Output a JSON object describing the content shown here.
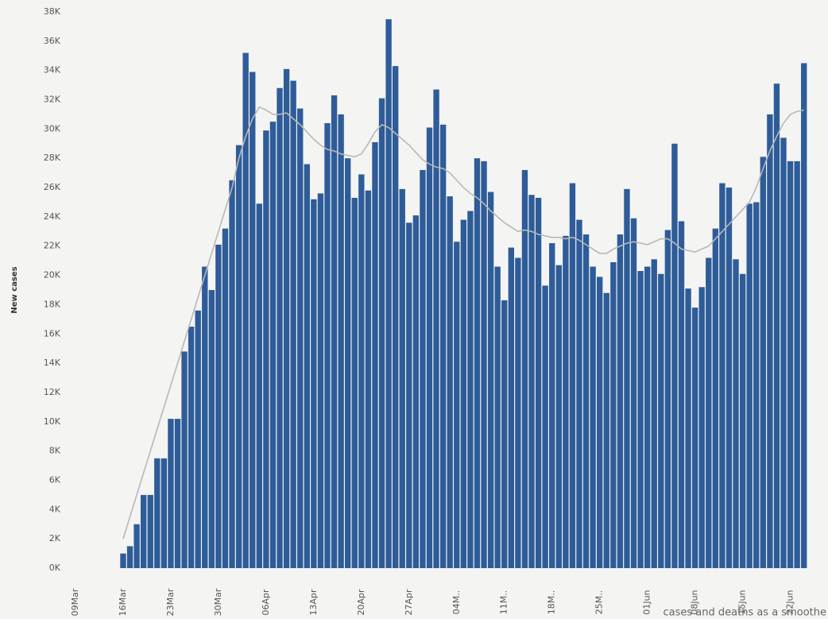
{
  "chart_data": {
    "type": "bar",
    "y_label": "New cases",
    "footnote": "cases and deaths as a smoothe",
    "ylim": [
      0,
      38
    ],
    "yticks": [
      {
        "value": 0,
        "label": "0K"
      },
      {
        "value": 2,
        "label": "2K"
      },
      {
        "value": 4,
        "label": "4K"
      },
      {
        "value": 6,
        "label": "6K"
      },
      {
        "value": 8,
        "label": "8K"
      },
      {
        "value": 10,
        "label": "10K"
      },
      {
        "value": 12,
        "label": "12K"
      },
      {
        "value": 14,
        "label": "14K"
      },
      {
        "value": 16,
        "label": "16K"
      },
      {
        "value": 18,
        "label": "18K"
      },
      {
        "value": 20,
        "label": "20K"
      },
      {
        "value": 22,
        "label": "22K"
      },
      {
        "value": 24,
        "label": "24K"
      },
      {
        "value": 26,
        "label": "26K"
      },
      {
        "value": 28,
        "label": "28K"
      },
      {
        "value": 30,
        "label": "30K"
      },
      {
        "value": 32,
        "label": "32K"
      },
      {
        "value": 34,
        "label": "34K"
      },
      {
        "value": 36,
        "label": "36K"
      },
      {
        "value": 38,
        "label": "38K"
      }
    ],
    "grid": false,
    "categories": [
      "09Mar",
      null,
      null,
      null,
      null,
      null,
      null,
      "16Mar",
      null,
      null,
      null,
      null,
      null,
      null,
      "23Mar",
      null,
      null,
      null,
      null,
      null,
      null,
      "30Mar",
      null,
      null,
      null,
      null,
      null,
      null,
      "06Apr",
      null,
      null,
      null,
      null,
      null,
      null,
      "13Apr",
      null,
      null,
      null,
      null,
      null,
      null,
      "20Apr",
      null,
      null,
      null,
      null,
      null,
      null,
      "27Apr",
      null,
      null,
      null,
      null,
      null,
      null,
      "04M..",
      null,
      null,
      null,
      null,
      null,
      null,
      "11M..",
      null,
      null,
      null,
      null,
      null,
      null,
      "18M..",
      null,
      null,
      null,
      null,
      null,
      null,
      "25M..",
      null,
      null,
      null,
      null,
      null,
      null,
      "01Jun",
      null,
      null,
      null,
      null,
      null,
      null,
      "08Jun",
      null,
      null,
      null,
      null,
      null,
      null,
      "15Jun",
      null,
      null,
      null,
      null,
      null,
      null,
      "22Jun",
      null,
      null
    ],
    "series": [
      {
        "type": "bar",
        "color": "#2e5c99",
        "values": [
          null,
          null,
          null,
          null,
          null,
          null,
          null,
          1.0,
          1.5,
          3.0,
          5.0,
          5.0,
          7.5,
          7.5,
          10.2,
          10.2,
          14.8,
          16.5,
          17.6,
          20.6,
          19.0,
          22.1,
          23.2,
          26.5,
          28.9,
          35.2,
          33.9,
          24.9,
          29.9,
          30.5,
          32.8,
          34.1,
          33.3,
          31.4,
          27.6,
          25.2,
          25.6,
          30.4,
          32.3,
          31.0,
          28.0,
          25.3,
          26.9,
          25.8,
          29.1,
          32.1,
          37.5,
          34.3,
          25.9,
          23.6,
          24.1,
          27.2,
          30.1,
          32.7,
          30.3,
          25.4,
          22.3,
          23.8,
          24.4,
          28.0,
          27.8,
          25.7,
          20.6,
          18.3,
          21.9,
          21.2,
          27.2,
          25.5,
          25.3,
          19.3,
          22.2,
          20.7,
          22.7,
          26.3,
          23.8,
          22.8,
          20.6,
          19.9,
          18.8,
          20.9,
          22.8,
          25.9,
          23.9,
          20.3,
          20.6,
          21.1,
          20.1,
          23.1,
          29.0,
          23.7,
          19.1,
          17.8,
          19.2,
          21.2,
          23.2,
          26.3,
          26.0,
          21.1,
          20.1,
          24.9,
          25.0,
          28.1,
          31.0,
          33.1,
          29.4,
          27.8,
          27.8,
          34.5
        ]
      },
      {
        "type": "line",
        "color": "#b8b8b8",
        "values": [
          null,
          null,
          null,
          null,
          null,
          null,
          null,
          2,
          3.5,
          5,
          6.5,
          8,
          9.5,
          11,
          12.5,
          14,
          15.5,
          17,
          18.5,
          20,
          21.5,
          23,
          24.5,
          26,
          28,
          29.5,
          30.7,
          31.5,
          31.3,
          31.0,
          31.0,
          31.1,
          30.7,
          30.3,
          29.8,
          29.3,
          28.9,
          28.6,
          28.5,
          28.3,
          28.2,
          28.1,
          28.3,
          29.0,
          29.8,
          30.3,
          30.1,
          29.7,
          29.3,
          28.9,
          28.4,
          27.9,
          27.6,
          27.4,
          27.3,
          27.0,
          26.5,
          26.0,
          25.6,
          25.3,
          24.9,
          24.4,
          24.0,
          23.6,
          23.3,
          23.0,
          23.1,
          23.0,
          22.8,
          22.7,
          22.6,
          22.6,
          22.5,
          22.6,
          22.4,
          22.1,
          21.8,
          21.5,
          21.5,
          21.8,
          22.0,
          22.2,
          22.3,
          22.2,
          22.1,
          22.3,
          22.5,
          22.5,
          22.2,
          21.8,
          21.7,
          21.6,
          21.8,
          22.0,
          22.5,
          23.0,
          23.5,
          24.0,
          24.5,
          25.0,
          26.0,
          27.3,
          28.5,
          29.5,
          30.4,
          31.0,
          31.2,
          31.3
        ]
      }
    ]
  }
}
